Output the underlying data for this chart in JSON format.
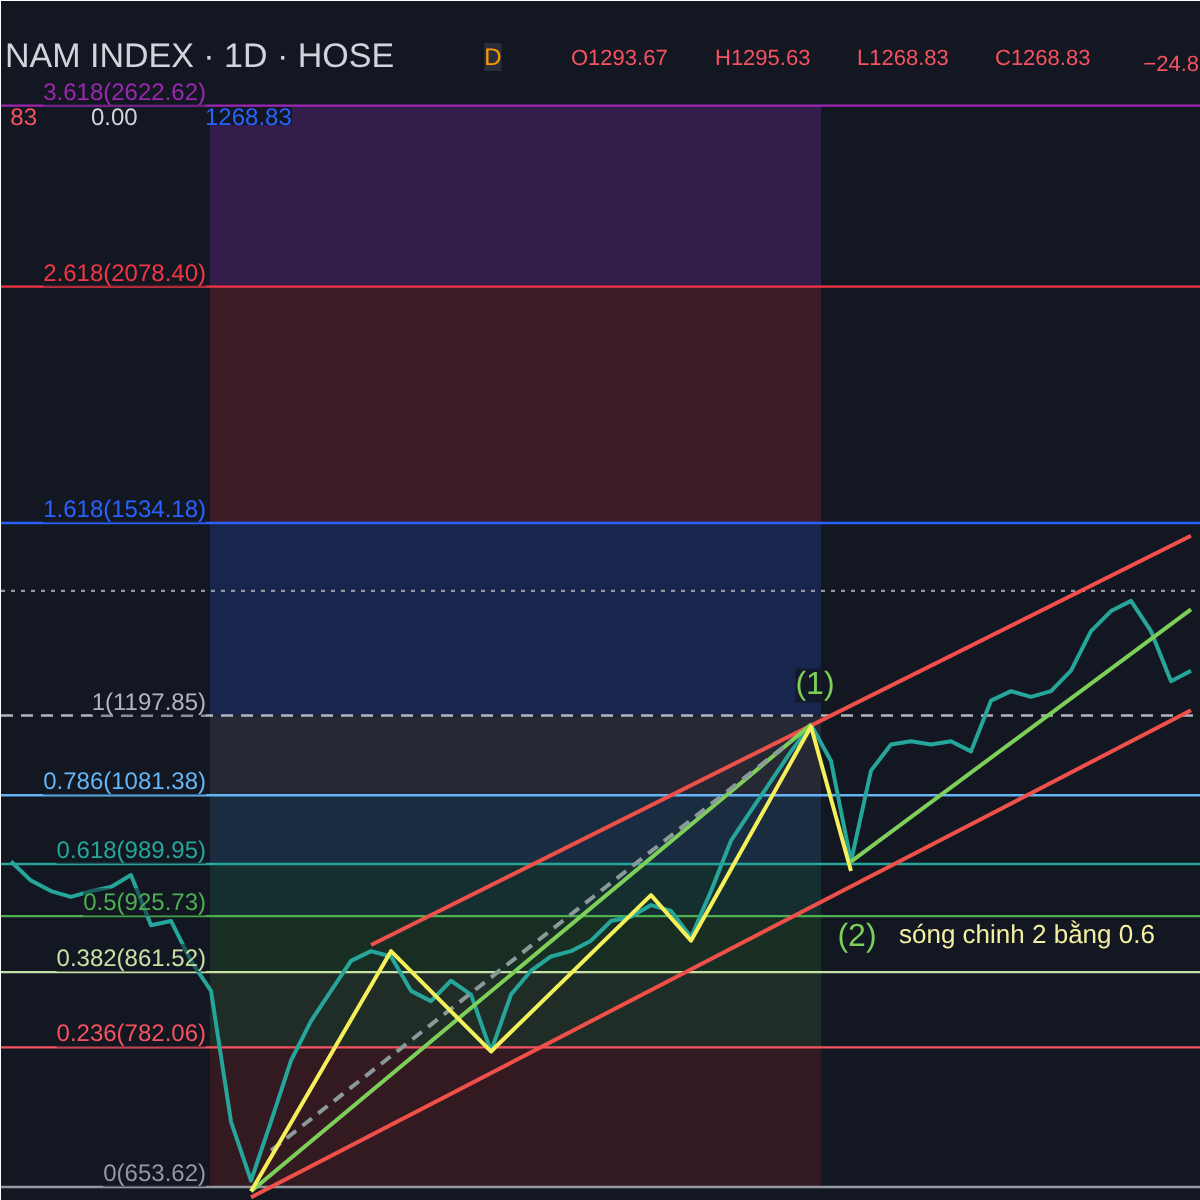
{
  "chart_data": {
    "type": "line",
    "title": "NAM INDEX · 1D · HOSE",
    "categories": [
      null,
      null,
      null,
      null,
      null,
      null,
      null,
      null,
      null,
      null,
      null,
      null,
      null,
      null,
      null,
      null,
      null,
      null,
      null,
      null,
      null,
      null,
      null,
      null,
      null,
      null,
      null,
      null,
      null,
      null,
      null,
      null,
      null,
      null,
      null,
      null,
      null,
      null,
      null,
      null,
      null,
      null,
      null,
      null,
      null,
      null,
      null,
      null,
      null,
      null,
      null,
      null,
      null,
      null,
      null,
      null,
      null,
      null,
      null,
      null
    ],
    "series": [
      {
        "color": "#26a69a",
        "values": [
          993,
          969,
          956,
          949,
          956,
          961,
          976,
          915,
          920,
          874,
          841,
          711,
          659,
          711,
          769,
          809,
          841,
          874,
          885,
          879,
          841,
          830,
          852,
          837,
          778,
          837,
          863,
          879,
          885,
          897,
          920,
          925,
          939,
          932,
          901,
          956,
          1020,
          1060,
          1101,
          1144,
          1184,
          1130,
          993,
          1116,
          1154,
          1159,
          1154,
          1159,
          1144,
          1221,
          1236,
          1227,
          1236,
          1269,
          1335,
          1370,
          1388,
          1335,
          1252,
          1269
        ]
      },
      {
        "type": "line",
        "color": "#f0504a",
        "values": [
          null,
          null,
          null,
          null,
          null,
          null,
          null,
          null,
          null,
          null,
          null,
          null,
          null,
          null,
          null,
          null,
          null,
          null,
          892,
          null,
          null,
          null,
          null,
          null,
          null,
          null,
          null,
          null,
          null,
          null,
          null,
          null,
          null,
          null,
          null,
          null,
          null,
          null,
          null,
          null,
          null,
          null,
          null,
          null,
          null,
          null,
          null,
          null,
          null,
          null,
          null,
          null,
          null,
          null,
          null,
          null,
          null,
          null,
          null,
          1509
        ]
      },
      {
        "type": "line",
        "color": "#f0504a",
        "values": [
          null,
          null,
          null,
          null,
          null,
          null,
          null,
          null,
          null,
          null,
          null,
          null,
          645,
          null,
          null,
          null,
          null,
          null,
          null,
          null,
          null,
          null,
          null,
          null,
          null,
          null,
          null,
          null,
          null,
          null,
          null,
          null,
          null,
          null,
          null,
          null,
          null,
          null,
          null,
          null,
          null,
          null,
          null,
          null,
          null,
          null,
          null,
          null,
          null,
          null,
          null,
          null,
          null,
          null,
          null,
          null,
          null,
          null,
          null,
          1206
        ]
      },
      {
        "type": "line",
        "color": "#7ecf5a",
        "values": [
          null,
          null,
          null,
          null,
          null,
          null,
          null,
          null,
          null,
          null,
          null,
          null,
          650,
          null,
          null,
          null,
          null,
          null,
          null,
          null,
          null,
          null,
          null,
          null,
          null,
          null,
          null,
          null,
          null,
          null,
          null,
          null,
          null,
          null,
          null,
          null,
          null,
          null,
          null,
          null,
          1184,
          null,
          null,
          null,
          null,
          null,
          null,
          null,
          null,
          null,
          null,
          null,
          null,
          null,
          null,
          null,
          null,
          null,
          null,
          null
        ]
      },
      {
        "type": "line",
        "color": "#7ecf5a",
        "values": [
          null,
          null,
          null,
          null,
          null,
          null,
          null,
          null,
          null,
          null,
          null,
          null,
          null,
          null,
          null,
          null,
          null,
          null,
          null,
          null,
          null,
          null,
          null,
          null,
          null,
          null,
          null,
          null,
          null,
          null,
          null,
          null,
          null,
          null,
          null,
          null,
          null,
          null,
          null,
          null,
          null,
          null,
          993,
          null,
          null,
          null,
          null,
          null,
          null,
          null,
          null,
          null,
          null,
          null,
          null,
          null,
          null,
          null,
          null,
          1373
        ]
      },
      {
        "type": "line",
        "color": "#8a9a9a",
        "line_style": "dashed",
        "values": [
          null,
          null,
          null,
          null,
          null,
          null,
          null,
          null,
          null,
          null,
          null,
          null,
          null,
          685,
          null,
          null,
          null,
          null,
          null,
          null,
          null,
          null,
          null,
          null,
          null,
          null,
          null,
          null,
          null,
          null,
          null,
          null,
          null,
          null,
          null,
          null,
          null,
          null,
          null,
          1159,
          null,
          null,
          null,
          null,
          null,
          null,
          null,
          null,
          null,
          null,
          null,
          null,
          null,
          null,
          null,
          null,
          null,
          null,
          null,
          null
        ]
      },
      {
        "type": "line",
        "color": "#f5f05a",
        "values": [
          null,
          null,
          null,
          null,
          null,
          null,
          null,
          null,
          null,
          null,
          null,
          null,
          650,
          null,
          null,
          null,
          null,
          null,
          null,
          885,
          null,
          null,
          null,
          null,
          778,
          null,
          null,
          null,
          null,
          null,
          null,
          null,
          951,
          null,
          897,
          null,
          null,
          null,
          null,
          null,
          1181,
          null,
          981,
          null,
          null,
          null,
          null,
          null,
          null,
          null,
          null,
          null,
          null,
          null,
          null,
          null,
          null,
          null,
          null,
          null
        ]
      }
    ],
    "log": "y",
    "ylim": [
      642,
      3000
    ],
    "tick_labels": false,
    "ref_lines": [
      {
        "axis": "y",
        "value": 2622.62,
        "label": "3.618(2622.62)",
        "color": "#9c27b0"
      },
      {
        "axis": "y",
        "value": 2078.4,
        "label": "2.618(2078.40)",
        "color": "#f23645"
      },
      {
        "axis": "y",
        "value": 1534.18,
        "label": "1.618(1534.18)",
        "color": "#2962ff"
      },
      {
        "axis": "y",
        "value": 1406,
        "label": null,
        "color": "#9598a1",
        "line_style": "dotted"
      },
      {
        "axis": "y",
        "value": 1197.85,
        "label": "1(1197.85)",
        "color": "#b2b5be",
        "line_style": "dashed"
      },
      {
        "axis": "y",
        "value": 1081.38,
        "label": "0.786(1081.38)",
        "color": "#64b5f6"
      },
      {
        "axis": "y",
        "value": 989.95,
        "label": "0.618(989.95)",
        "color": "#26a69a"
      },
      {
        "axis": "y",
        "value": 925.73,
        "label": "0.5(925.73)",
        "color": "#4caf50"
      },
      {
        "axis": "y",
        "value": 861.52,
        "label": "0.382(861.52)",
        "color": "#c5e1a5"
      },
      {
        "axis": "y",
        "value": 782.06,
        "label": "0.236(782.06)",
        "color": "#f7525f"
      },
      {
        "axis": "y",
        "value": 653.62,
        "label": "0(653.62)",
        "color": "#9598a1"
      }
    ],
    "bands": [
      {
        "axis": "y",
        "from": 2078.4,
        "to": 2622.62,
        "color": "#4a2368"
      },
      {
        "axis": "y",
        "from": 1534.18,
        "to": 2078.4,
        "color": "#5a1f28"
      },
      {
        "axis": "y",
        "from": 1197.85,
        "to": 1534.18,
        "color": "#1c2f6a"
      },
      {
        "axis": "y",
        "from": 1081.38,
        "to": 1197.85,
        "color": "#33363f"
      },
      {
        "axis": "y",
        "from": 989.95,
        "to": 1081.38,
        "color": "#1e3a55"
      },
      {
        "axis": "y",
        "from": 925.73,
        "to": 989.95,
        "color": "#17403c"
      },
      {
        "axis": "y",
        "from": 861.52,
        "to": 925.73,
        "color": "#1d3d25"
      },
      {
        "axis": "y",
        "from": 782.06,
        "to": 861.52,
        "color": "#2a3a2a"
      },
      {
        "axis": "y",
        "from": 653.62,
        "to": 782.06,
        "color": "#4a1c22"
      }
    ],
    "annotations": [
      "O1293.67",
      "H1295.63",
      "L1268.83",
      "C1268.83",
      "−24.8",
      "83",
      "0.00",
      "1268.83",
      "D",
      "(1)",
      "(2)",
      "sóng chinh 2 bằng 0.6"
    ]
  }
}
